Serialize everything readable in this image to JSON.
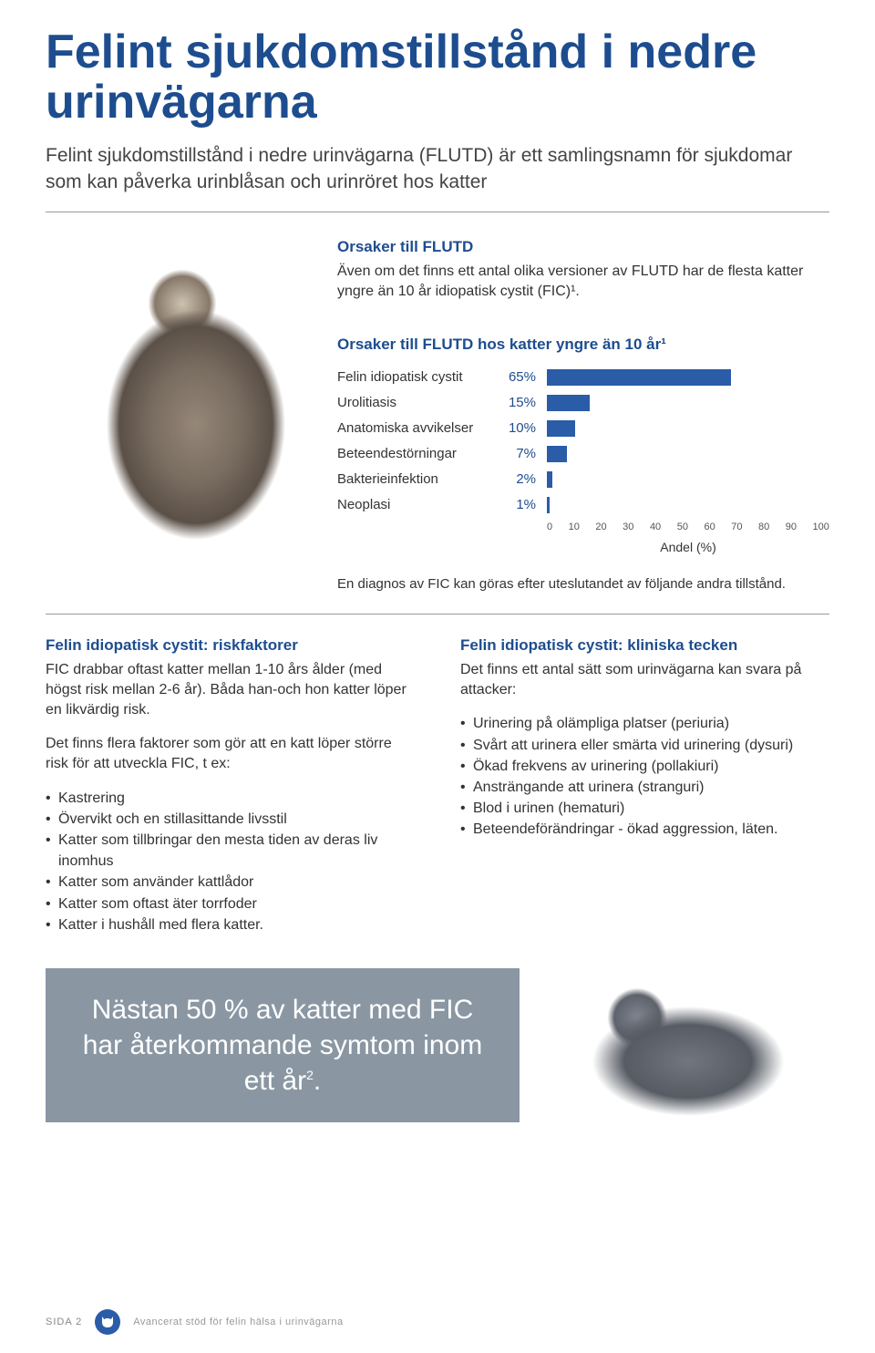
{
  "title": "Felint sjukdomstillstånd i nedre urinvägarna",
  "intro": "Felint sjukdomstillstånd i nedre urinvägarna (FLUTD) är ett samlingsnamn för sjukdomar som kan påverka urinblåsan och urinröret hos katter",
  "causes": {
    "heading": "Orsaker till FLUTD",
    "text": "Även om det finns ett antal olika versioner av FLUTD har de flesta katter yngre än 10 år idiopatisk cystit (FIC)¹."
  },
  "chart": {
    "heading": "Orsaker till FLUTD hos katter yngre än 10 år¹",
    "type": "bar",
    "rows": [
      {
        "label": "Felin idiopatisk cystit",
        "value": 65,
        "display": "65%"
      },
      {
        "label": "Urolitiasis",
        "value": 15,
        "display": "15%"
      },
      {
        "label": "Anatomiska avvikelser",
        "value": 10,
        "display": "10%"
      },
      {
        "label": "Beteendestörningar",
        "value": 7,
        "display": "7%"
      },
      {
        "label": "Bakterieinfektion",
        "value": 2,
        "display": "2%"
      },
      {
        "label": "Neoplasi",
        "value": 1,
        "display": "1%"
      }
    ],
    "bar_color": "#2a5ca8",
    "value_color": "#1d4d8f",
    "xmax": 100,
    "ticks": [
      "0",
      "10",
      "20",
      "30",
      "40",
      "50",
      "60",
      "70",
      "80",
      "90",
      "100"
    ],
    "axis_label": "Andel (%)",
    "note": "En diagnos av FIC kan göras efter uteslutandet av följande andra tillstånd."
  },
  "risk": {
    "heading": "Felin idiopatisk cystit: riskfaktorer",
    "p1": "FIC drabbar oftast katter mellan 1-10 års ålder (med högst risk mellan 2-6 år). Båda han-och hon katter löper en likvärdig risk.",
    "p2": "Det finns flera faktorer som gör att en katt löper större risk för att utveckla FIC, t ex:",
    "items": [
      "Kastrering",
      "Övervikt och en stillasittande livsstil",
      "Katter som tillbringar den mesta tiden av deras liv inomhus",
      "Katter som använder kattlådor",
      "Katter som oftast äter torrfoder",
      "Katter i hushåll med flera katter."
    ]
  },
  "clinical": {
    "heading": "Felin idiopatisk cystit: kliniska tecken",
    "p1": "Det finns ett antal sätt som urinvägarna kan svara på attacker:",
    "items": [
      "Urinering på olämpliga platser (periuria)",
      "Svårt att urinera eller smärta vid urinering (dysuri)",
      "Ökad frekvens av urinering (pollakiuri)",
      "Ansträngande att urinera (stranguri)",
      "Blod i urinen (hematuri)",
      "Beteendeförändringar - ökad aggression, läten."
    ]
  },
  "callout": {
    "text": "Nästan 50 % av katter med FIC har återkommande symtom inom ett år",
    "sup": "2",
    "period": ".",
    "bg": "#8a97a3",
    "fontsize": 30
  },
  "footer": {
    "page": "SIDA 2",
    "tagline": "Avancerat stöd för felin hälsa i urinvägarna"
  }
}
